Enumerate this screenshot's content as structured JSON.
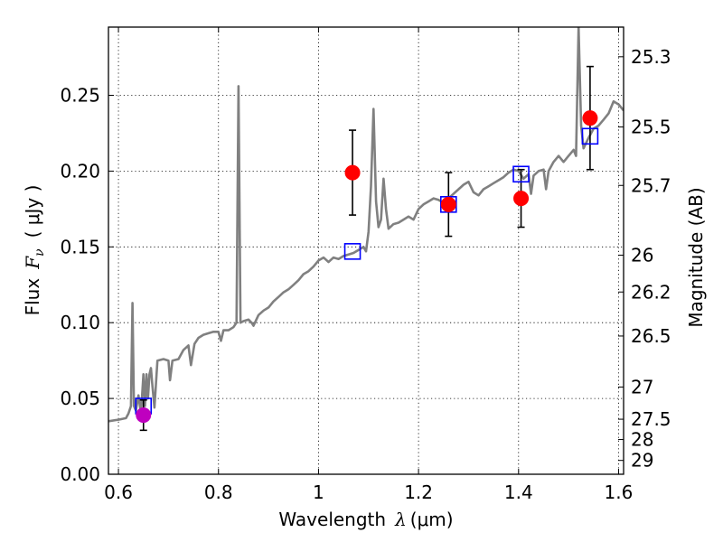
{
  "chart_data": {
    "type": "scatter",
    "xlabel_prefix": "Wavelength",
    "xlabel_symbol": "λ",
    "xlabel_units": "(μm)",
    "ylabel_prefix": "Flux",
    "ylabel_symbol": "F",
    "ylabel_sub": "ν",
    "ylabel_units": "( μJy )",
    "y2label": "Magnitude (AB)",
    "xlim": [
      0.58,
      1.61
    ],
    "ylim": [
      0.0,
      0.295
    ],
    "grid": true,
    "grid_style": "dotted",
    "x_ticks": [
      {
        "value": 0.6,
        "label": "0.6"
      },
      {
        "value": 0.8,
        "label": "0.8"
      },
      {
        "value": 1.0,
        "label": "1"
      },
      {
        "value": 1.2,
        "label": "1.2"
      },
      {
        "value": 1.4,
        "label": "1.4"
      },
      {
        "value": 1.6,
        "label": "1.6"
      }
    ],
    "y_ticks": [
      {
        "value": 0.0,
        "label": "0.00"
      },
      {
        "value": 0.05,
        "label": "0.05"
      },
      {
        "value": 0.1,
        "label": "0.10"
      },
      {
        "value": 0.15,
        "label": "0.15"
      },
      {
        "value": 0.2,
        "label": "0.20"
      },
      {
        "value": 0.25,
        "label": "0.25"
      }
    ],
    "y2_ticks": [
      {
        "mag": 25.3,
        "label": "25.3"
      },
      {
        "mag": 25.5,
        "label": "25.5"
      },
      {
        "mag": 25.7,
        "label": "25.7"
      },
      {
        "mag": 26.0,
        "label": "26"
      },
      {
        "mag": 26.2,
        "label": "26.2"
      },
      {
        "mag": 26.5,
        "label": "26.5"
      },
      {
        "mag": 27.0,
        "label": "27"
      },
      {
        "mag": 27.5,
        "label": "27.5"
      },
      {
        "mag": 28.0,
        "label": "28"
      },
      {
        "mag": 29.0,
        "label": "29"
      }
    ],
    "series": [
      {
        "kind": "model_spectrum",
        "color": "#808080",
        "points": [
          [
            0.58,
            0.035
          ],
          [
            0.6,
            0.036
          ],
          [
            0.615,
            0.037
          ],
          [
            0.62,
            0.04
          ],
          [
            0.625,
            0.045
          ],
          [
            0.628,
            0.113
          ],
          [
            0.631,
            0.045
          ],
          [
            0.635,
            0.042
          ],
          [
            0.64,
            0.052
          ],
          [
            0.645,
            0.04
          ],
          [
            0.65,
            0.066
          ],
          [
            0.653,
            0.045
          ],
          [
            0.656,
            0.066
          ],
          [
            0.659,
            0.05
          ],
          [
            0.662,
            0.066
          ],
          [
            0.665,
            0.07
          ],
          [
            0.668,
            0.058
          ],
          [
            0.672,
            0.044
          ],
          [
            0.678,
            0.075
          ],
          [
            0.69,
            0.076
          ],
          [
            0.7,
            0.075
          ],
          [
            0.703,
            0.062
          ],
          [
            0.708,
            0.075
          ],
          [
            0.72,
            0.076
          ],
          [
            0.73,
            0.082
          ],
          [
            0.74,
            0.085
          ],
          [
            0.745,
            0.072
          ],
          [
            0.752,
            0.086
          ],
          [
            0.76,
            0.09
          ],
          [
            0.77,
            0.092
          ],
          [
            0.78,
            0.093
          ],
          [
            0.79,
            0.094
          ],
          [
            0.8,
            0.094
          ],
          [
            0.805,
            0.088
          ],
          [
            0.81,
            0.095
          ],
          [
            0.82,
            0.095
          ],
          [
            0.83,
            0.097
          ],
          [
            0.836,
            0.1
          ],
          [
            0.84,
            0.256
          ],
          [
            0.844,
            0.1
          ],
          [
            0.85,
            0.101
          ],
          [
            0.86,
            0.102
          ],
          [
            0.866,
            0.1
          ],
          [
            0.87,
            0.098
          ],
          [
            0.88,
            0.105
          ],
          [
            0.89,
            0.108
          ],
          [
            0.9,
            0.11
          ],
          [
            0.91,
            0.114
          ],
          [
            0.92,
            0.117
          ],
          [
            0.93,
            0.12
          ],
          [
            0.94,
            0.122
          ],
          [
            0.95,
            0.125
          ],
          [
            0.96,
            0.128
          ],
          [
            0.97,
            0.132
          ],
          [
            0.98,
            0.134
          ],
          [
            0.99,
            0.137
          ],
          [
            1.0,
            0.141
          ],
          [
            1.01,
            0.143
          ],
          [
            1.02,
            0.14
          ],
          [
            1.03,
            0.143
          ],
          [
            1.04,
            0.142
          ],
          [
            1.05,
            0.144
          ],
          [
            1.06,
            0.145
          ],
          [
            1.07,
            0.146
          ],
          [
            1.08,
            0.148
          ],
          [
            1.09,
            0.15
          ],
          [
            1.095,
            0.147
          ],
          [
            1.1,
            0.16
          ],
          [
            1.105,
            0.19
          ],
          [
            1.11,
            0.241
          ],
          [
            1.115,
            0.18
          ],
          [
            1.12,
            0.163
          ],
          [
            1.125,
            0.168
          ],
          [
            1.13,
            0.195
          ],
          [
            1.135,
            0.175
          ],
          [
            1.14,
            0.162
          ],
          [
            1.15,
            0.165
          ],
          [
            1.16,
            0.166
          ],
          [
            1.17,
            0.168
          ],
          [
            1.18,
            0.17
          ],
          [
            1.19,
            0.168
          ],
          [
            1.2,
            0.175
          ],
          [
            1.21,
            0.178
          ],
          [
            1.22,
            0.18
          ],
          [
            1.23,
            0.182
          ],
          [
            1.24,
            0.181
          ],
          [
            1.25,
            0.179
          ],
          [
            1.26,
            0.182
          ],
          [
            1.27,
            0.185
          ],
          [
            1.28,
            0.188
          ],
          [
            1.29,
            0.191
          ],
          [
            1.3,
            0.193
          ],
          [
            1.31,
            0.186
          ],
          [
            1.32,
            0.184
          ],
          [
            1.33,
            0.188
          ],
          [
            1.34,
            0.19
          ],
          [
            1.35,
            0.192
          ],
          [
            1.36,
            0.194
          ],
          [
            1.37,
            0.196
          ],
          [
            1.38,
            0.199
          ],
          [
            1.39,
            0.201
          ],
          [
            1.4,
            0.2
          ],
          [
            1.41,
            0.195
          ],
          [
            1.42,
            0.198
          ],
          [
            1.425,
            0.185
          ],
          [
            1.43,
            0.197
          ],
          [
            1.44,
            0.2
          ],
          [
            1.45,
            0.201
          ],
          [
            1.455,
            0.188
          ],
          [
            1.46,
            0.2
          ],
          [
            1.47,
            0.206
          ],
          [
            1.48,
            0.21
          ],
          [
            1.49,
            0.206
          ],
          [
            1.5,
            0.21
          ],
          [
            1.51,
            0.214
          ],
          [
            1.515,
            0.21
          ],
          [
            1.52,
            0.295
          ],
          [
            1.525,
            0.23
          ],
          [
            1.53,
            0.215
          ],
          [
            1.54,
            0.222
          ],
          [
            1.55,
            0.228
          ],
          [
            1.56,
            0.23
          ],
          [
            1.57,
            0.234
          ],
          [
            1.58,
            0.238
          ],
          [
            1.59,
            0.246
          ],
          [
            1.6,
            0.244
          ],
          [
            1.61,
            0.24
          ]
        ]
      },
      {
        "kind": "model_bands",
        "marker": "open-square",
        "color": "#0000ff",
        "points": [
          [
            0.65,
            0.045
          ],
          [
            1.068,
            0.147
          ],
          [
            1.26,
            0.178
          ],
          [
            1.405,
            0.198
          ],
          [
            1.543,
            0.223
          ]
        ]
      },
      {
        "kind": "observed",
        "marker": "filled-circle",
        "points": [
          {
            "x": 0.65,
            "y": 0.039,
            "err": 0.01,
            "color": "#bf00bf"
          },
          {
            "x": 1.068,
            "y": 0.199,
            "err": 0.028,
            "color": "#ff0000"
          },
          {
            "x": 1.26,
            "y": 0.178,
            "err": 0.021,
            "color": "#ff0000"
          },
          {
            "x": 1.405,
            "y": 0.182,
            "err": 0.019,
            "color": "#ff0000"
          },
          {
            "x": 1.543,
            "y": 0.235,
            "err": 0.034,
            "color": "#ff0000"
          }
        ]
      }
    ]
  }
}
